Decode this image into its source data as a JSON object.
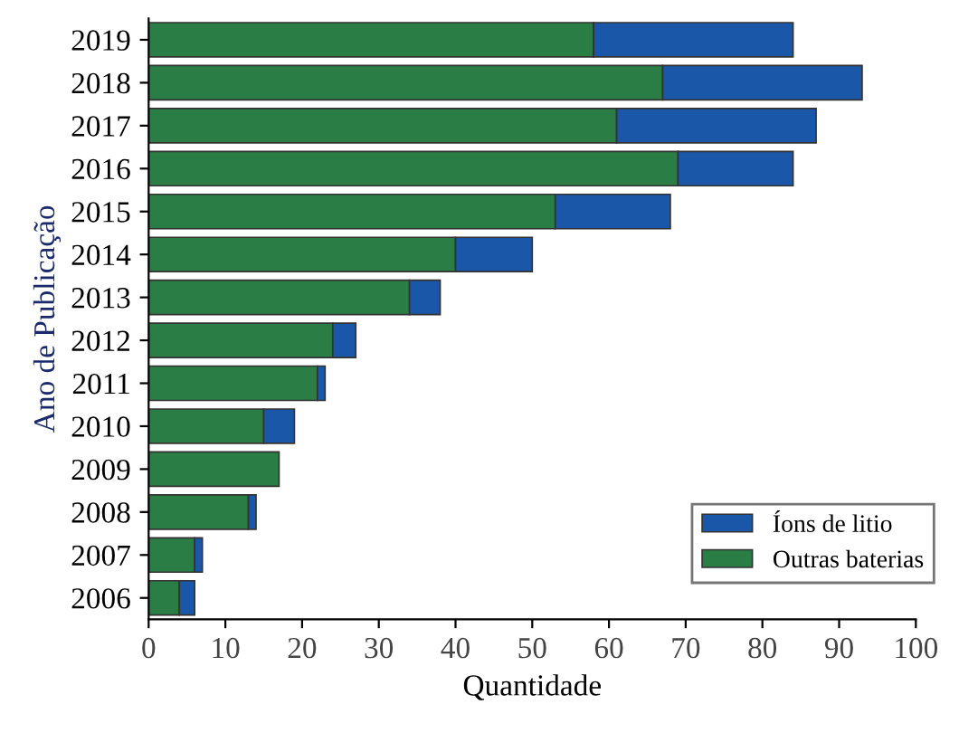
{
  "chart_data": {
    "type": "bar",
    "orientation": "horizontal",
    "stacked": true,
    "xlabel": "Quantidade",
    "ylabel": "Ano de Publicação",
    "categories": [
      "2019",
      "2018",
      "2017",
      "2016",
      "2015",
      "2014",
      "2013",
      "2012",
      "2011",
      "2010",
      "2009",
      "2008",
      "2007",
      "2006"
    ],
    "series": [
      {
        "name": "Outras baterias",
        "color": "#2a7d45",
        "values": [
          58,
          67,
          61,
          69,
          53,
          40,
          34,
          24,
          22,
          15,
          17,
          13,
          6,
          4
        ]
      },
      {
        "name": "Íons de litio",
        "color": "#1b57a8",
        "values": [
          26,
          26,
          26,
          15,
          15,
          10,
          4,
          3,
          1,
          4,
          null,
          1,
          1,
          2
        ]
      }
    ],
    "xlim": [
      0,
      100
    ],
    "xticks": [
      0,
      10,
      20,
      30,
      40,
      50,
      60,
      70,
      80,
      90,
      100
    ],
    "legend": "bottom right"
  }
}
